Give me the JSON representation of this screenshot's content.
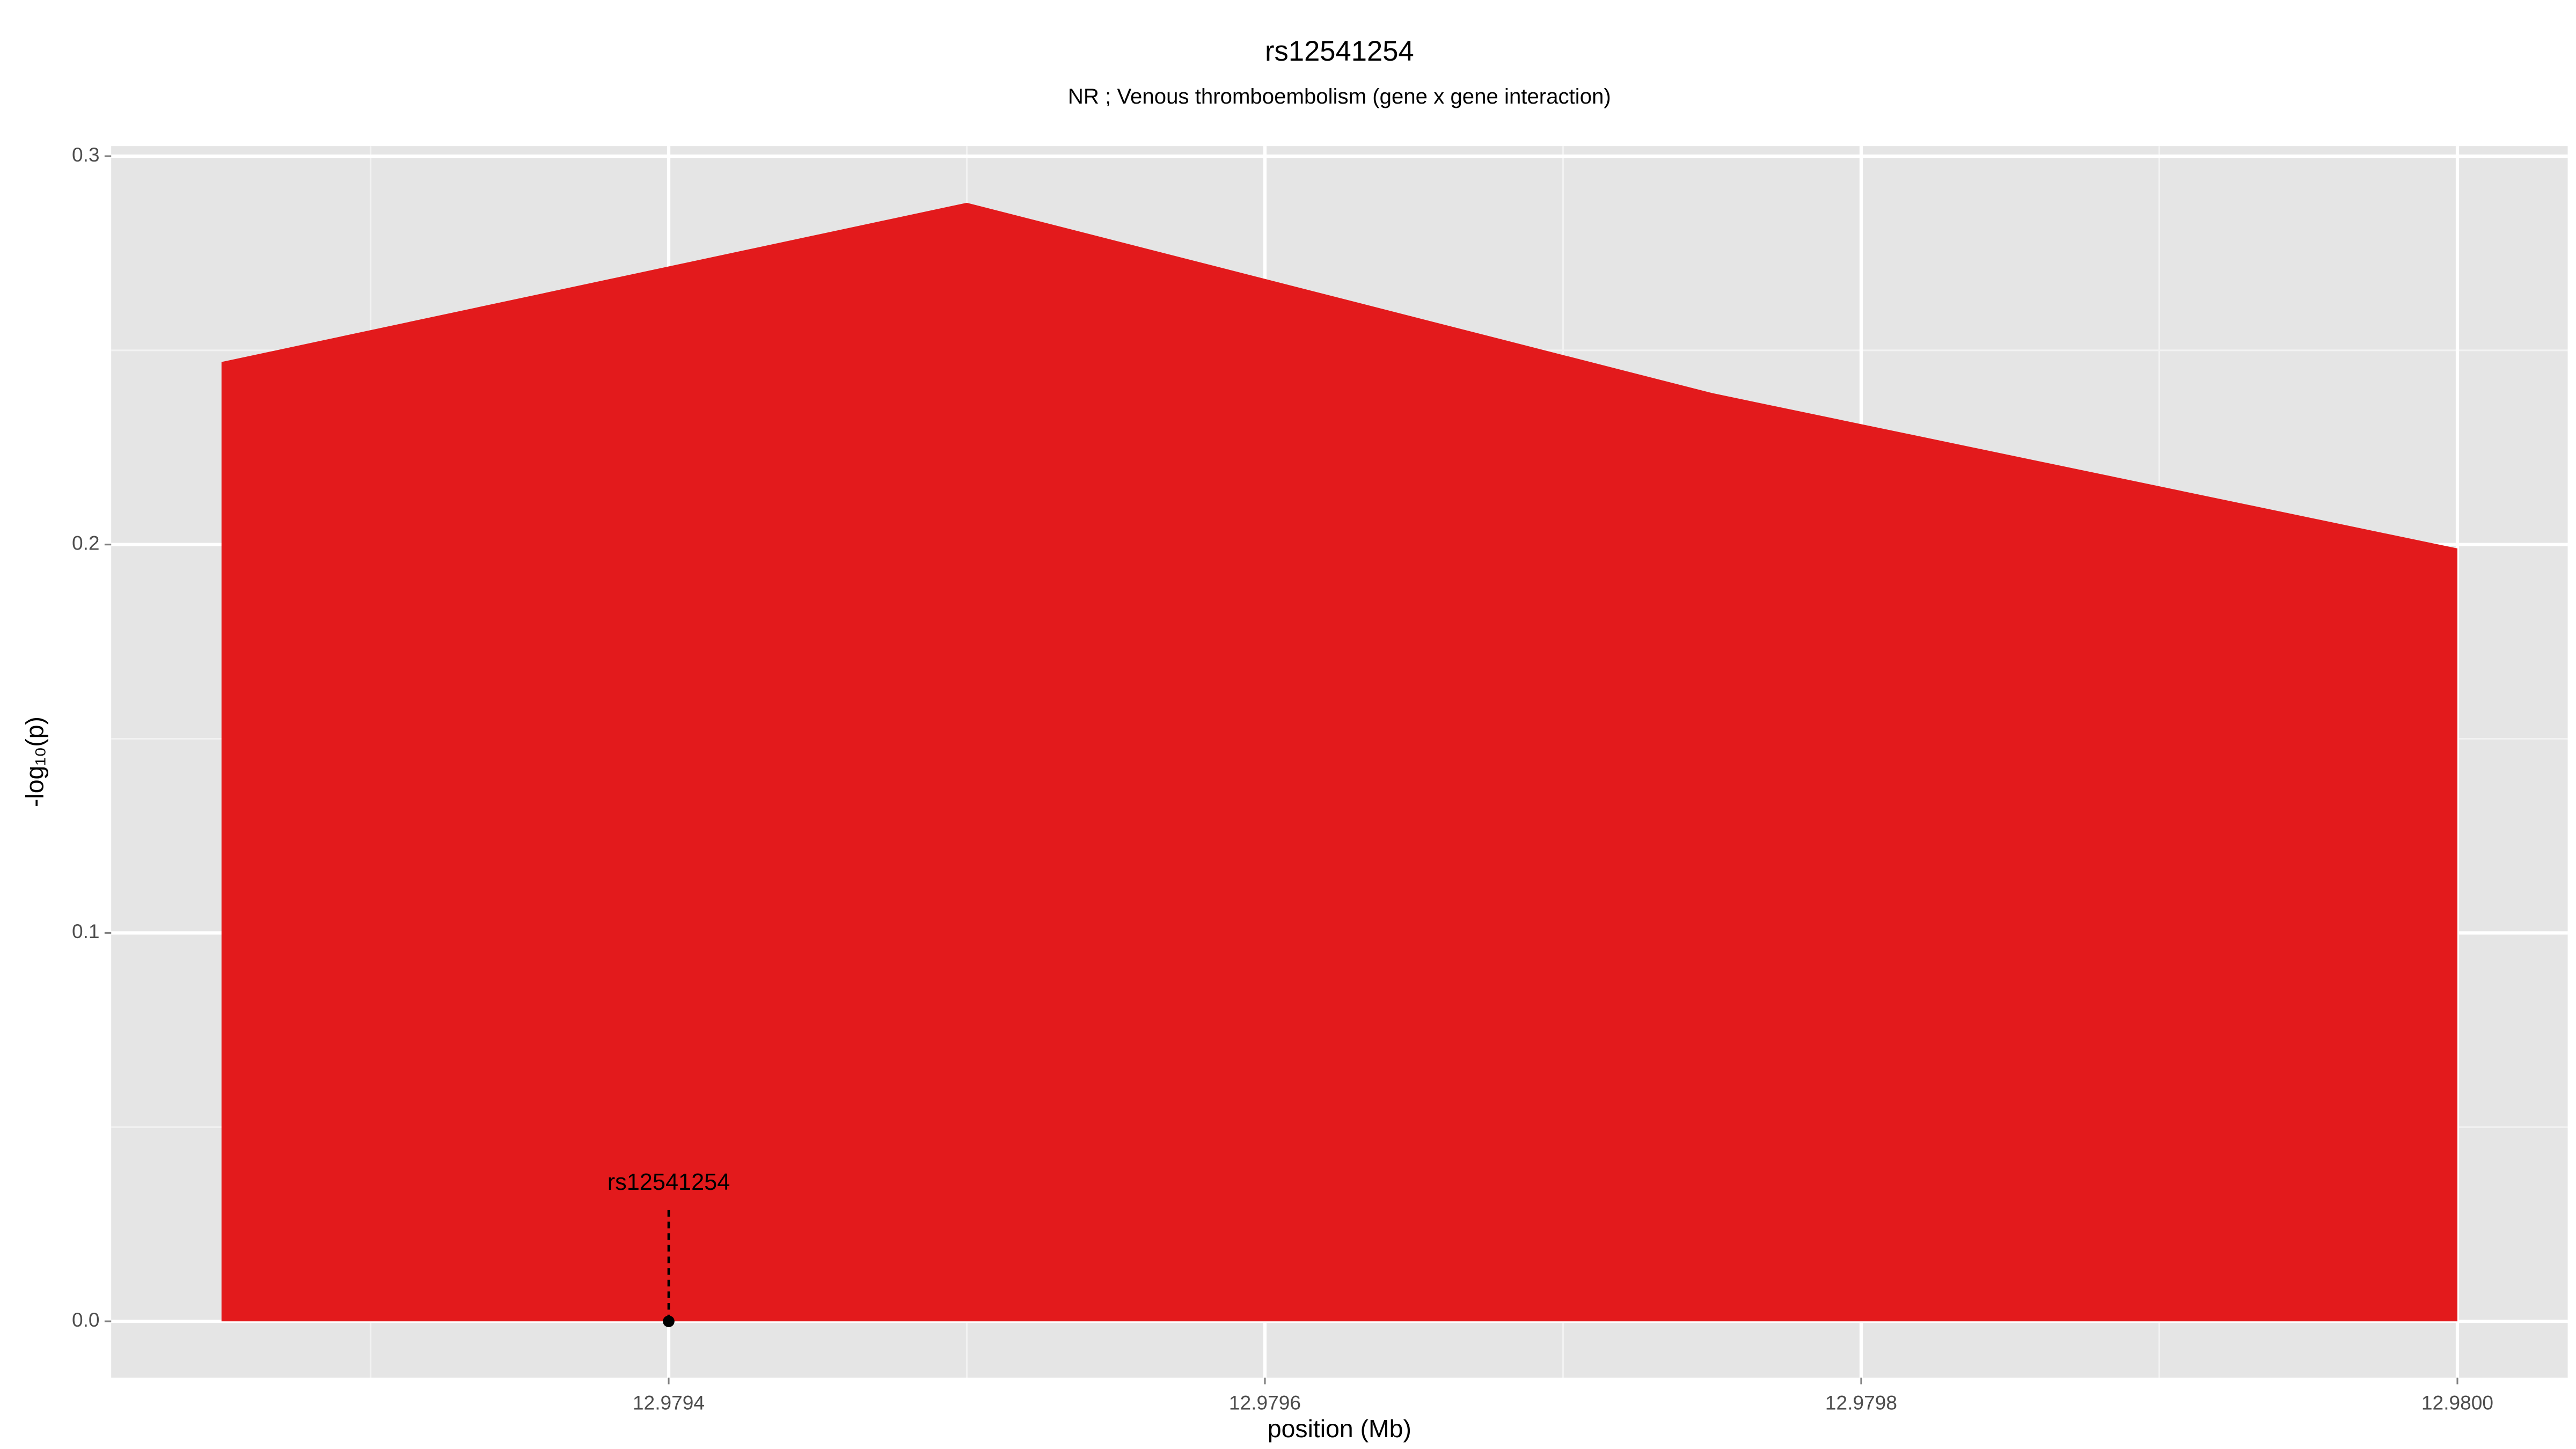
{
  "chart_data": {
    "type": "area",
    "title": "rs12541254",
    "subtitle": "NR ; Venous thromboembolism (gene x gene interaction)",
    "xlabel": "position (Mb)",
    "ylabel": "-log₁₀(p)",
    "x": [
      12.97925,
      12.9795,
      12.97975,
      12.98
    ],
    "series": [
      {
        "color": "#e31a1c",
        "values": [
          0.247,
          0.288,
          0.239,
          0.199
        ]
      }
    ],
    "xlim": [
      12.979213,
      12.980037
    ],
    "ylim": [
      -0.0145,
      0.3026
    ],
    "xticks": [
      12.9794,
      12.9796,
      12.9798,
      {
        "value": 12.98,
        "label": "12.9800"
      }
    ],
    "yticks": [
      {
        "value": 0,
        "label": "0.0"
      },
      0.1,
      0.2,
      0.3
    ],
    "x_minor_ticks": [
      12.9793,
      12.9795,
      12.9797,
      12.9799
    ],
    "y_minor_ticks": [
      0.05,
      0.15,
      0.25
    ],
    "grid": true,
    "annotation": {
      "label": "rs12541254",
      "x": 12.9794,
      "y": 0
    }
  }
}
